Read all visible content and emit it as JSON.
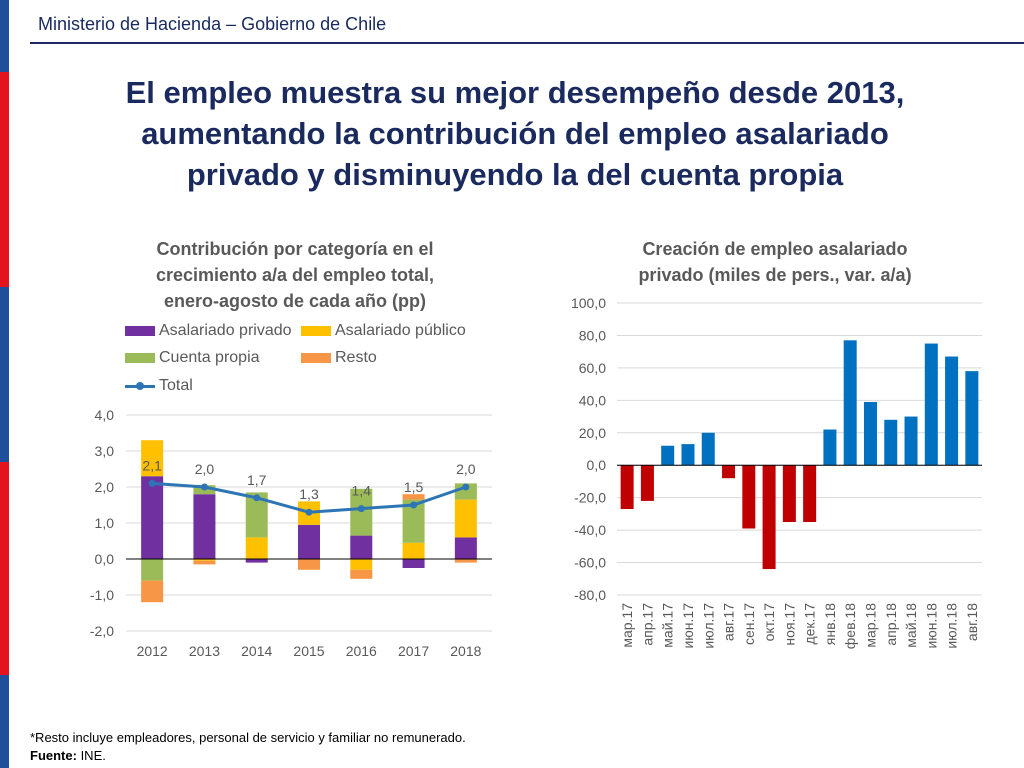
{
  "header": {
    "org": "Ministerio de Hacienda – Gobierno de Chile"
  },
  "title": {
    "line1": "El empleo muestra su mejor desempeño desde 2013,",
    "line2": "aumentando la contribución del empleo asalariado",
    "line3": "privado y disminuyendo la del cuenta propia"
  },
  "colors": {
    "purple": "#7030a0",
    "yellow": "#ffc000",
    "green": "#9bbb59",
    "orange": "#f79646",
    "line": "#2e75b6",
    "red": "#c00000",
    "blue": "#0070c0"
  },
  "chart_data": [
    {
      "type": "bar",
      "stacked": true,
      "title_lines": [
        "Contribución por categoría en el",
        "crecimiento a/a del empleo total,",
        "enero-agosto de cada año (pp)"
      ],
      "categories": [
        "2012",
        "2013",
        "2014",
        "2015",
        "2016",
        "2017",
        "2018"
      ],
      "series": [
        {
          "name": "Asalariado privado",
          "values": [
            2.3,
            1.8,
            -0.1,
            0.95,
            0.65,
            -0.25,
            0.6
          ]
        },
        {
          "name": "Asalariado público",
          "values": [
            1.0,
            -0.05,
            0.6,
            0.65,
            -0.3,
            0.45,
            1.05
          ]
        },
        {
          "name": "Cuenta propia",
          "values": [
            -0.6,
            0.25,
            1.25,
            0.0,
            1.3,
            1.2,
            0.45
          ]
        },
        {
          "name": "Resto",
          "values": [
            -0.6,
            -0.1,
            0.0,
            -0.3,
            -0.25,
            0.15,
            -0.1
          ]
        }
      ],
      "line": {
        "name": "Total",
        "values": [
          2.1,
          2.0,
          1.7,
          1.3,
          1.4,
          1.5,
          2.0
        ],
        "labels": [
          "2,1",
          "2,0",
          "1,7",
          "1,3",
          "1,4",
          "1,5",
          "2,0"
        ]
      },
      "ylim": [
        -2.0,
        4.0
      ],
      "yticks": [
        "4,0",
        "3,0",
        "2,0",
        "1,0",
        "0,0",
        "-1,0",
        "-2,0"
      ],
      "ytick_values": [
        4,
        3,
        2,
        1,
        0,
        -1,
        -2
      ]
    },
    {
      "type": "bar",
      "title_lines": [
        "Creación de empleo asalariado",
        "privado (miles de pers., var. a/a)"
      ],
      "categories": [
        "мар.17",
        "апр.17",
        "май.17",
        "июн.17",
        "июл.17",
        "авг.17",
        "сен.17",
        "окт.17",
        "ноя.17",
        "дек.17",
        "янв.18",
        "фев.18",
        "мар.18",
        "апр.18",
        "май.18",
        "июн.18",
        "июл.18",
        "авг.18"
      ],
      "values": [
        -27,
        -22,
        12,
        13,
        20,
        -8,
        -39,
        -64,
        -35,
        -35,
        22,
        77,
        39,
        28,
        30,
        75,
        67,
        58
      ],
      "ylim": [
        -80,
        100
      ],
      "yticks": [
        "100,0",
        "80,0",
        "60,0",
        "40,0",
        "20,0",
        "0,0",
        "-20,0",
        "-40,0",
        "-60,0",
        "-80,0"
      ],
      "ytick_values": [
        100,
        80,
        60,
        40,
        20,
        0,
        -20,
        -40,
        -60,
        -80
      ]
    }
  ],
  "footnote": {
    "note": "*Resto incluye empleadores, personal de servicio y familiar no remunerado.",
    "source_label": "Fuente:",
    "source_value": " INE."
  }
}
